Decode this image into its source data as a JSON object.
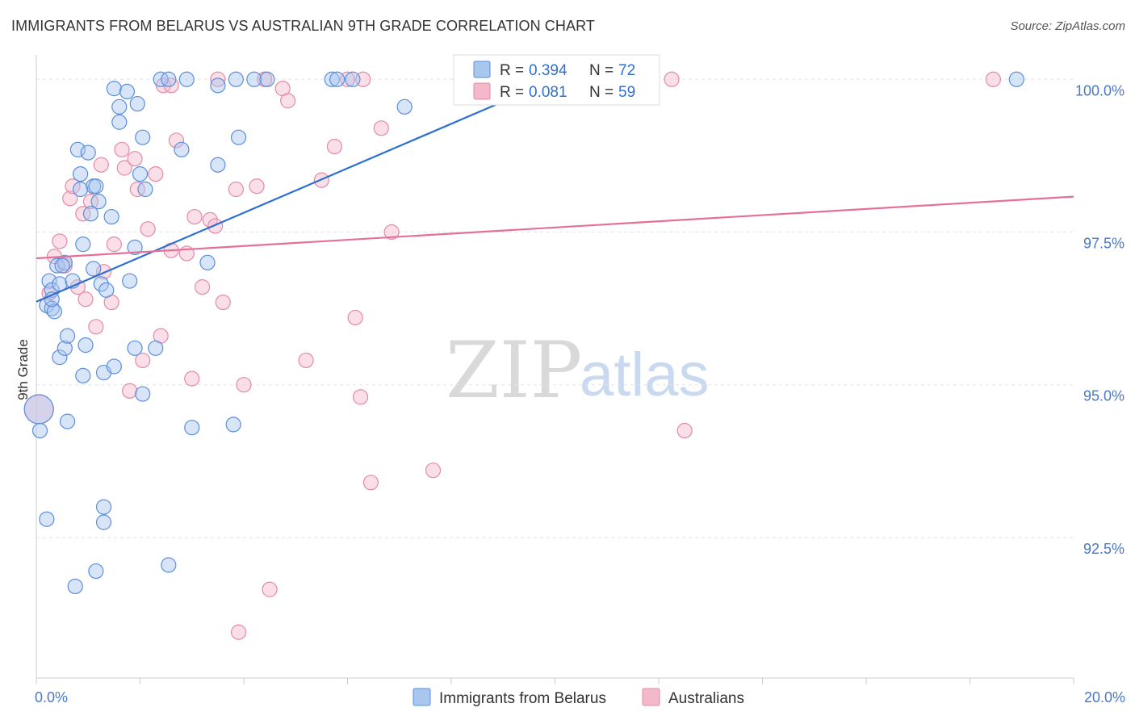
{
  "header": {
    "title": "IMMIGRANTS FROM BELARUS VS AUSTRALIAN 9TH GRADE CORRELATION CHART",
    "source": "Source: ZipAtlas.com"
  },
  "watermark": {
    "zip": "ZIP",
    "atlas": "atlas"
  },
  "colors": {
    "blue_fill": "#a9c6ef",
    "blue_stroke": "#5b8fd9",
    "blue_line": "#2e6fd0",
    "pink_fill": "#f4b8cb",
    "pink_stroke": "#e38aa8",
    "pink_line": "#e4709a",
    "grid": "#e3e3e3",
    "tick_text": "#4a78c6"
  },
  "legend": {
    "r_label": "R =",
    "n_label": "N =",
    "blue": {
      "r": "0.394",
      "n": "72"
    },
    "pink": {
      "r": "0.081",
      "n": "59"
    }
  },
  "chart_data": {
    "type": "scatter",
    "title": "IMMIGRANTS FROM BELARUS VS AUSTRALIAN 9TH GRADE CORRELATION CHART",
    "xlabel": "",
    "ylabel": "9th Grade",
    "xlim": [
      0,
      20
    ],
    "ylim": [
      90.2,
      100.4
    ],
    "x_tick_labels": [
      {
        "value": 0,
        "label": "0.0%"
      },
      {
        "value": 20,
        "label": "20.0%"
      }
    ],
    "y_ticks": [
      {
        "value": 100.0,
        "label": "100.0%"
      },
      {
        "value": 97.5,
        "label": "97.5%"
      },
      {
        "value": 95.0,
        "label": "95.0%"
      },
      {
        "value": 92.5,
        "label": "92.5%"
      }
    ],
    "x_minor_ticks": [
      0,
      2,
      4,
      6,
      8,
      10,
      12,
      14,
      16,
      18,
      20
    ],
    "series": [
      {
        "name": "Immigrants from Belarus",
        "color": "blue",
        "r": 0.394,
        "n": 72,
        "trend": {
          "x": [
            0,
            10
          ],
          "y": [
            96.36,
            100.0
          ]
        },
        "points": [
          [
            0.05,
            94.6
          ],
          [
            0.07,
            94.25
          ],
          [
            0.2,
            96.3
          ],
          [
            0.25,
            96.7
          ],
          [
            0.3,
            96.55
          ],
          [
            0.3,
            96.25
          ],
          [
            0.35,
            96.2
          ],
          [
            0.4,
            96.95
          ],
          [
            0.45,
            95.45
          ],
          [
            0.45,
            96.65
          ],
          [
            0.55,
            97.0
          ],
          [
            0.55,
            95.6
          ],
          [
            0.6,
            95.8
          ],
          [
            0.6,
            94.4
          ],
          [
            0.2,
            92.8
          ],
          [
            0.7,
            96.7
          ],
          [
            0.75,
            91.7
          ],
          [
            0.8,
            98.85
          ],
          [
            0.85,
            98.45
          ],
          [
            0.9,
            97.3
          ],
          [
            0.9,
            95.15
          ],
          [
            0.95,
            95.65
          ],
          [
            1.0,
            98.8
          ],
          [
            1.05,
            97.8
          ],
          [
            1.1,
            96.9
          ],
          [
            1.1,
            98.25
          ],
          [
            1.15,
            91.95
          ],
          [
            1.2,
            98.0
          ],
          [
            1.25,
            96.65
          ],
          [
            1.3,
            95.2
          ],
          [
            1.35,
            96.55
          ],
          [
            1.45,
            97.75
          ],
          [
            1.5,
            95.3
          ],
          [
            1.6,
            99.3
          ],
          [
            1.6,
            99.55
          ],
          [
            1.5,
            99.85
          ],
          [
            1.75,
            99.8
          ],
          [
            1.8,
            96.7
          ],
          [
            1.9,
            97.25
          ],
          [
            1.9,
            95.6
          ],
          [
            2.0,
            98.45
          ],
          [
            2.05,
            94.85
          ],
          [
            2.1,
            98.2
          ],
          [
            2.05,
            99.05
          ],
          [
            1.95,
            99.6
          ],
          [
            2.3,
            95.6
          ],
          [
            2.4,
            100.0
          ],
          [
            2.55,
            100.0
          ],
          [
            2.8,
            98.85
          ],
          [
            2.9,
            100.0
          ],
          [
            3.0,
            94.3
          ],
          [
            3.3,
            97.0
          ],
          [
            3.5,
            99.9
          ],
          [
            3.5,
            98.6
          ],
          [
            3.8,
            94.35
          ],
          [
            3.85,
            100.0
          ],
          [
            3.9,
            99.05
          ],
          [
            4.2,
            100.0
          ],
          [
            4.45,
            100.0
          ],
          [
            5.7,
            100.0
          ],
          [
            5.8,
            100.0
          ],
          [
            6.1,
            100.0
          ],
          [
            7.1,
            99.55
          ],
          [
            9.8,
            100.0
          ],
          [
            18.9,
            100.0
          ],
          [
            1.3,
            93.0
          ],
          [
            1.3,
            92.75
          ],
          [
            2.55,
            92.05
          ],
          [
            0.85,
            98.2
          ],
          [
            1.15,
            98.25
          ],
          [
            0.3,
            96.4
          ],
          [
            0.5,
            96.95
          ]
        ]
      },
      {
        "name": "Australians",
        "color": "pink",
        "r": 0.081,
        "n": 59,
        "trend": {
          "x": [
            0,
            20
          ],
          "y": [
            97.07,
            98.08
          ]
        },
        "points": [
          [
            0.05,
            94.6
          ],
          [
            0.25,
            96.5
          ],
          [
            0.35,
            97.1
          ],
          [
            0.45,
            97.35
          ],
          [
            0.55,
            96.95
          ],
          [
            0.65,
            98.05
          ],
          [
            0.7,
            98.25
          ],
          [
            0.8,
            96.6
          ],
          [
            0.9,
            97.8
          ],
          [
            0.95,
            96.4
          ],
          [
            1.05,
            98.0
          ],
          [
            1.15,
            95.95
          ],
          [
            1.25,
            98.6
          ],
          [
            1.3,
            96.85
          ],
          [
            1.45,
            96.35
          ],
          [
            1.5,
            97.3
          ],
          [
            1.65,
            98.85
          ],
          [
            1.7,
            98.55
          ],
          [
            1.8,
            94.9
          ],
          [
            1.9,
            98.7
          ],
          [
            1.95,
            98.2
          ],
          [
            2.05,
            95.4
          ],
          [
            2.15,
            97.55
          ],
          [
            2.3,
            98.45
          ],
          [
            2.4,
            95.8
          ],
          [
            2.45,
            99.9
          ],
          [
            2.6,
            99.9
          ],
          [
            2.6,
            97.2
          ],
          [
            2.7,
            99.0
          ],
          [
            2.9,
            97.15
          ],
          [
            3.0,
            95.1
          ],
          [
            3.05,
            97.75
          ],
          [
            3.2,
            96.6
          ],
          [
            3.35,
            97.7
          ],
          [
            3.45,
            97.6
          ],
          [
            3.5,
            100.0
          ],
          [
            3.6,
            96.35
          ],
          [
            3.85,
            98.2
          ],
          [
            3.9,
            90.95
          ],
          [
            4.0,
            95.0
          ],
          [
            4.25,
            98.25
          ],
          [
            4.4,
            100.0
          ],
          [
            4.5,
            91.65
          ],
          [
            4.75,
            99.85
          ],
          [
            4.85,
            99.65
          ],
          [
            5.2,
            95.4
          ],
          [
            5.5,
            98.35
          ],
          [
            5.75,
            98.9
          ],
          [
            6.0,
            100.0
          ],
          [
            6.15,
            96.1
          ],
          [
            6.25,
            94.8
          ],
          [
            6.3,
            100.0
          ],
          [
            6.45,
            93.4
          ],
          [
            6.65,
            99.2
          ],
          [
            6.85,
            97.5
          ],
          [
            7.65,
            93.6
          ],
          [
            12.25,
            100.0
          ],
          [
            12.5,
            94.25
          ],
          [
            18.45,
            100.0
          ]
        ]
      }
    ],
    "legend_labels": [
      "Immigrants from Belarus",
      "Australians"
    ]
  }
}
